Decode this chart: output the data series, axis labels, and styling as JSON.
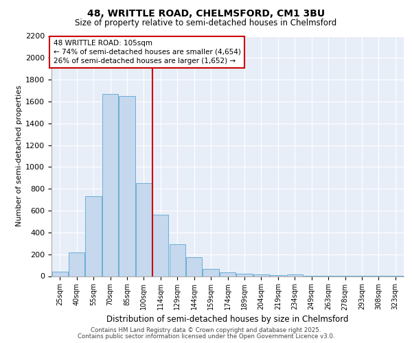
{
  "title1": "48, WRITTLE ROAD, CHELMSFORD, CM1 3BU",
  "title2": "Size of property relative to semi-detached houses in Chelmsford",
  "xlabel": "Distribution of semi-detached houses by size in Chelmsford",
  "ylabel": "Number of semi-detached properties",
  "categories": [
    "25sqm",
    "40sqm",
    "55sqm",
    "70sqm",
    "85sqm",
    "100sqm",
    "114sqm",
    "129sqm",
    "144sqm",
    "159sqm",
    "174sqm",
    "189sqm",
    "204sqm",
    "219sqm",
    "234sqm",
    "249sqm",
    "263sqm",
    "278sqm",
    "293sqm",
    "308sqm",
    "323sqm"
  ],
  "values": [
    40,
    220,
    730,
    1670,
    1650,
    850,
    560,
    290,
    175,
    65,
    35,
    20,
    15,
    10,
    15,
    5,
    5,
    5,
    5,
    5,
    5
  ],
  "bar_color": "#c5d8ed",
  "bar_edge_color": "#6aaed6",
  "vline_idx": 6,
  "annotation_title": "48 WRITTLE ROAD: 105sqm",
  "annotation_line1": "← 74% of semi-detached houses are smaller (4,654)",
  "annotation_line2": "26% of semi-detached houses are larger (1,652) →",
  "annotation_box_color": "#cc0000",
  "ylim": [
    0,
    2200
  ],
  "yticks": [
    0,
    200,
    400,
    600,
    800,
    1000,
    1200,
    1400,
    1600,
    1800,
    2000,
    2200
  ],
  "bg_color": "#e8eef8",
  "footer1": "Contains HM Land Registry data © Crown copyright and database right 2025.",
  "footer2": "Contains public sector information licensed under the Open Government Licence v3.0."
}
